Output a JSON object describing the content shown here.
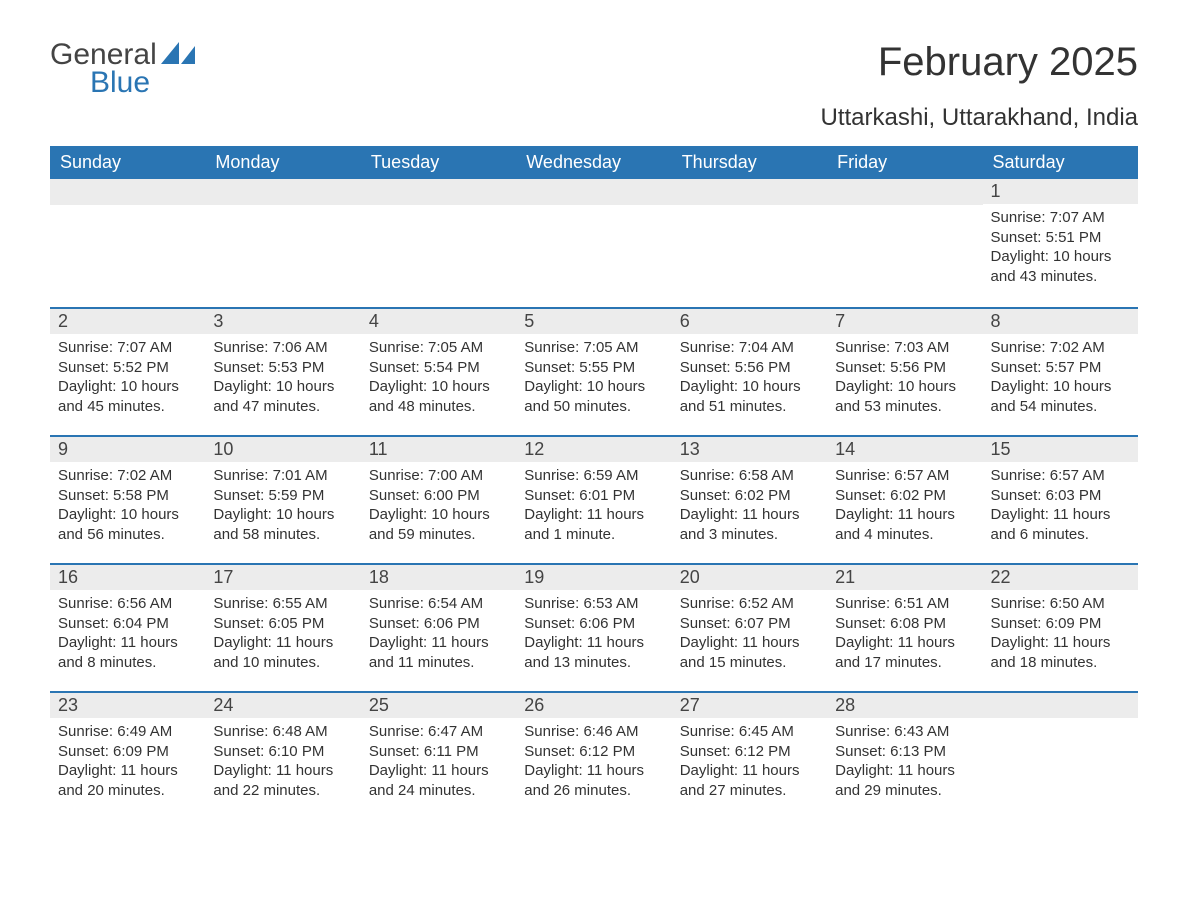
{
  "brand": {
    "word1": "General",
    "word2": "Blue",
    "word1_color": "#444444",
    "word2_color": "#2a75b3",
    "sail_color": "#2a75b3"
  },
  "colors": {
    "header_bg": "#2a75b3",
    "header_text": "#ffffff",
    "daynum_bg": "#ececec",
    "row_border": "#2a75b3",
    "page_bg": "#ffffff",
    "body_text": "#333333"
  },
  "typography": {
    "title_fontsize": 40,
    "location_fontsize": 24,
    "dayname_fontsize": 18,
    "daynum_fontsize": 18,
    "body_fontsize": 15
  },
  "title": "February 2025",
  "location": "Uttarkashi, Uttarakhand, India",
  "day_names": [
    "Sunday",
    "Monday",
    "Tuesday",
    "Wednesday",
    "Thursday",
    "Friday",
    "Saturday"
  ],
  "weeks": [
    [
      null,
      null,
      null,
      null,
      null,
      null,
      {
        "d": "1",
        "sunrise": "Sunrise: 7:07 AM",
        "sunset": "Sunset: 5:51 PM",
        "daylight": "Daylight: 10 hours and 43 minutes."
      }
    ],
    [
      {
        "d": "2",
        "sunrise": "Sunrise: 7:07 AM",
        "sunset": "Sunset: 5:52 PM",
        "daylight": "Daylight: 10 hours and 45 minutes."
      },
      {
        "d": "3",
        "sunrise": "Sunrise: 7:06 AM",
        "sunset": "Sunset: 5:53 PM",
        "daylight": "Daylight: 10 hours and 47 minutes."
      },
      {
        "d": "4",
        "sunrise": "Sunrise: 7:05 AM",
        "sunset": "Sunset: 5:54 PM",
        "daylight": "Daylight: 10 hours and 48 minutes."
      },
      {
        "d": "5",
        "sunrise": "Sunrise: 7:05 AM",
        "sunset": "Sunset: 5:55 PM",
        "daylight": "Daylight: 10 hours and 50 minutes."
      },
      {
        "d": "6",
        "sunrise": "Sunrise: 7:04 AM",
        "sunset": "Sunset: 5:56 PM",
        "daylight": "Daylight: 10 hours and 51 minutes."
      },
      {
        "d": "7",
        "sunrise": "Sunrise: 7:03 AM",
        "sunset": "Sunset: 5:56 PM",
        "daylight": "Daylight: 10 hours and 53 minutes."
      },
      {
        "d": "8",
        "sunrise": "Sunrise: 7:02 AM",
        "sunset": "Sunset: 5:57 PM",
        "daylight": "Daylight: 10 hours and 54 minutes."
      }
    ],
    [
      {
        "d": "9",
        "sunrise": "Sunrise: 7:02 AM",
        "sunset": "Sunset: 5:58 PM",
        "daylight": "Daylight: 10 hours and 56 minutes."
      },
      {
        "d": "10",
        "sunrise": "Sunrise: 7:01 AM",
        "sunset": "Sunset: 5:59 PM",
        "daylight": "Daylight: 10 hours and 58 minutes."
      },
      {
        "d": "11",
        "sunrise": "Sunrise: 7:00 AM",
        "sunset": "Sunset: 6:00 PM",
        "daylight": "Daylight: 10 hours and 59 minutes."
      },
      {
        "d": "12",
        "sunrise": "Sunrise: 6:59 AM",
        "sunset": "Sunset: 6:01 PM",
        "daylight": "Daylight: 11 hours and 1 minute."
      },
      {
        "d": "13",
        "sunrise": "Sunrise: 6:58 AM",
        "sunset": "Sunset: 6:02 PM",
        "daylight": "Daylight: 11 hours and 3 minutes."
      },
      {
        "d": "14",
        "sunrise": "Sunrise: 6:57 AM",
        "sunset": "Sunset: 6:02 PM",
        "daylight": "Daylight: 11 hours and 4 minutes."
      },
      {
        "d": "15",
        "sunrise": "Sunrise: 6:57 AM",
        "sunset": "Sunset: 6:03 PM",
        "daylight": "Daylight: 11 hours and 6 minutes."
      }
    ],
    [
      {
        "d": "16",
        "sunrise": "Sunrise: 6:56 AM",
        "sunset": "Sunset: 6:04 PM",
        "daylight": "Daylight: 11 hours and 8 minutes."
      },
      {
        "d": "17",
        "sunrise": "Sunrise: 6:55 AM",
        "sunset": "Sunset: 6:05 PM",
        "daylight": "Daylight: 11 hours and 10 minutes."
      },
      {
        "d": "18",
        "sunrise": "Sunrise: 6:54 AM",
        "sunset": "Sunset: 6:06 PM",
        "daylight": "Daylight: 11 hours and 11 minutes."
      },
      {
        "d": "19",
        "sunrise": "Sunrise: 6:53 AM",
        "sunset": "Sunset: 6:06 PM",
        "daylight": "Daylight: 11 hours and 13 minutes."
      },
      {
        "d": "20",
        "sunrise": "Sunrise: 6:52 AM",
        "sunset": "Sunset: 6:07 PM",
        "daylight": "Daylight: 11 hours and 15 minutes."
      },
      {
        "d": "21",
        "sunrise": "Sunrise: 6:51 AM",
        "sunset": "Sunset: 6:08 PM",
        "daylight": "Daylight: 11 hours and 17 minutes."
      },
      {
        "d": "22",
        "sunrise": "Sunrise: 6:50 AM",
        "sunset": "Sunset: 6:09 PM",
        "daylight": "Daylight: 11 hours and 18 minutes."
      }
    ],
    [
      {
        "d": "23",
        "sunrise": "Sunrise: 6:49 AM",
        "sunset": "Sunset: 6:09 PM",
        "daylight": "Daylight: 11 hours and 20 minutes."
      },
      {
        "d": "24",
        "sunrise": "Sunrise: 6:48 AM",
        "sunset": "Sunset: 6:10 PM",
        "daylight": "Daylight: 11 hours and 22 minutes."
      },
      {
        "d": "25",
        "sunrise": "Sunrise: 6:47 AM",
        "sunset": "Sunset: 6:11 PM",
        "daylight": "Daylight: 11 hours and 24 minutes."
      },
      {
        "d": "26",
        "sunrise": "Sunrise: 6:46 AM",
        "sunset": "Sunset: 6:12 PM",
        "daylight": "Daylight: 11 hours and 26 minutes."
      },
      {
        "d": "27",
        "sunrise": "Sunrise: 6:45 AM",
        "sunset": "Sunset: 6:12 PM",
        "daylight": "Daylight: 11 hours and 27 minutes."
      },
      {
        "d": "28",
        "sunrise": "Sunrise: 6:43 AM",
        "sunset": "Sunset: 6:13 PM",
        "daylight": "Daylight: 11 hours and 29 minutes."
      },
      null
    ]
  ]
}
